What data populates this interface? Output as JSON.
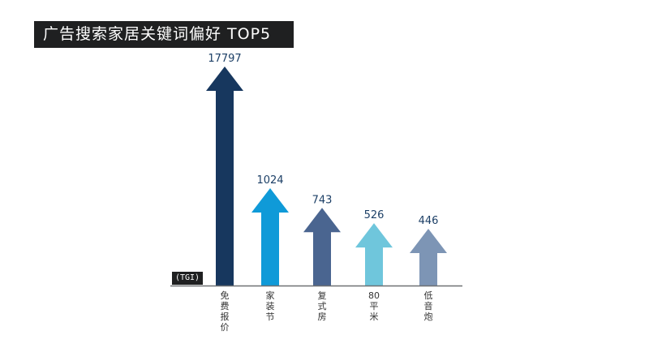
{
  "title": "广告搜索家居关键词偏好 TOP5",
  "unit": "(TGI)",
  "colors": {
    "title_bg": "#1f2021",
    "axis": "#6f7173"
  },
  "chart_data": {
    "type": "bar",
    "title": "广告搜索家居关键词偏好 TOP5",
    "ylabel": "(TGI)",
    "categories": [
      "免费报价",
      "家装节",
      "复式房",
      "80平米",
      "低音炮"
    ],
    "values": [
      17797,
      1024,
      743,
      526,
      446
    ],
    "colors": [
      "#17375e",
      "#0f9ad8",
      "#4a6590",
      "#6fc6dc",
      "#7d95b5"
    ],
    "value_labels": [
      "17797",
      "1024",
      "743",
      "526",
      "446"
    ]
  }
}
